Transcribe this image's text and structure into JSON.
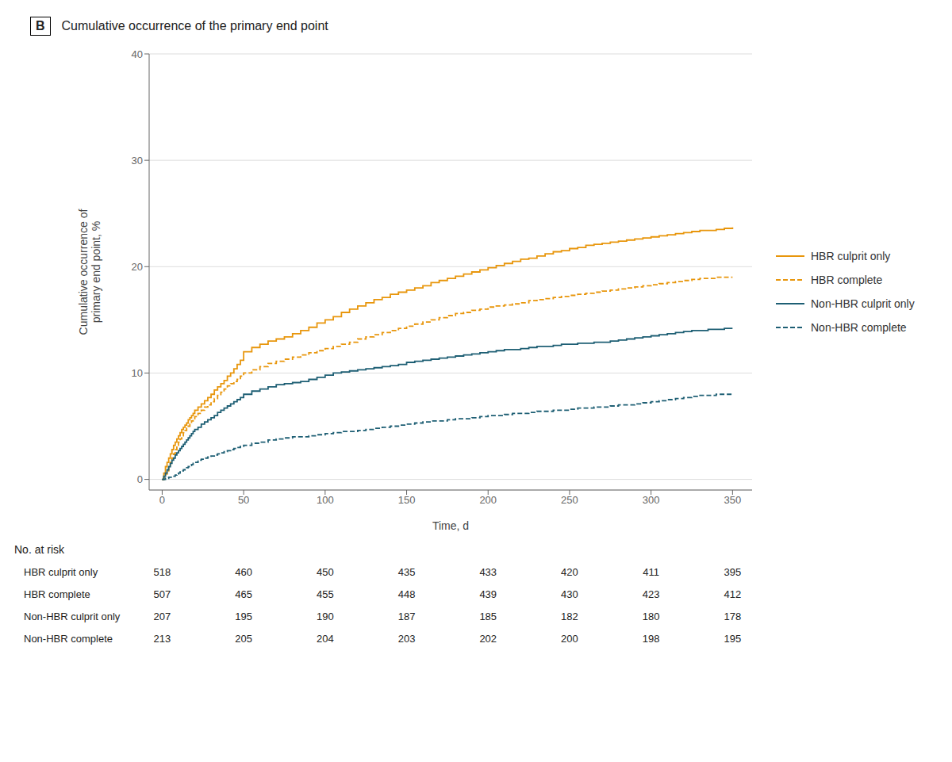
{
  "chart_data": {
    "type": "line",
    "step": true,
    "panel_label": "B",
    "title": "Cumulative occurrence of the primary end point",
    "xlabel": "Time, d",
    "ylabel": "Cumulative occurrence of\nprimary end point, %",
    "xlim": [
      -8,
      362
    ],
    "ylim": [
      -1,
      40
    ],
    "xticks": [
      0,
      50,
      100,
      150,
      200,
      250,
      300,
      350
    ],
    "yticks": [
      0,
      10,
      20,
      30,
      40
    ],
    "grid": true,
    "legend": "right",
    "x": [
      0,
      1,
      2,
      3,
      4,
      5,
      6,
      7,
      8,
      9,
      10,
      11,
      12,
      13,
      14,
      15,
      16,
      17,
      18,
      19,
      20,
      22,
      24,
      26,
      28,
      30,
      32,
      34,
      36,
      38,
      40,
      42,
      44,
      46,
      48,
      50,
      55,
      60,
      65,
      70,
      75,
      80,
      85,
      90,
      95,
      100,
      105,
      110,
      115,
      120,
      125,
      130,
      135,
      140,
      145,
      150,
      155,
      160,
      165,
      170,
      175,
      180,
      185,
      190,
      195,
      200,
      205,
      210,
      215,
      220,
      225,
      230,
      235,
      240,
      245,
      250,
      255,
      260,
      265,
      270,
      275,
      280,
      285,
      290,
      295,
      300,
      305,
      310,
      315,
      320,
      325,
      330,
      335,
      340,
      345,
      350
    ],
    "series": [
      {
        "name": "HBR culprit only",
        "color": "#E8960C",
        "line_style": "solid",
        "values": [
          0,
          0.6,
          1.2,
          1.6,
          2.0,
          2.4,
          2.8,
          3.2,
          3.5,
          3.8,
          4.1,
          4.4,
          4.7,
          4.9,
          5.1,
          5.3,
          5.6,
          5.8,
          6.0,
          6.2,
          6.5,
          6.8,
          7.1,
          7.4,
          7.7,
          8.0,
          8.4,
          8.7,
          9.0,
          9.3,
          9.7,
          10.0,
          10.4,
          10.8,
          11.2,
          12.0,
          12.4,
          12.7,
          13.0,
          13.2,
          13.4,
          13.7,
          14.0,
          14.3,
          14.7,
          15.0,
          15.3,
          15.7,
          16.0,
          16.3,
          16.6,
          16.9,
          17.1,
          17.4,
          17.6,
          17.8,
          18.0,
          18.2,
          18.5,
          18.7,
          18.9,
          19.1,
          19.3,
          19.5,
          19.7,
          19.9,
          20.1,
          20.3,
          20.5,
          20.7,
          20.8,
          21.0,
          21.2,
          21.4,
          21.5,
          21.7,
          21.8,
          22.0,
          22.1,
          22.2,
          22.3,
          22.4,
          22.5,
          22.6,
          22.7,
          22.8,
          22.9,
          23.0,
          23.1,
          23.2,
          23.3,
          23.4,
          23.4,
          23.5,
          23.6,
          23.7
        ]
      },
      {
        "name": "HBR complete",
        "color": "#E8960C",
        "line_style": "dashed",
        "values": [
          0,
          0.2,
          0.5,
          0.8,
          1.2,
          1.6,
          2.0,
          2.4,
          2.8,
          3.2,
          3.5,
          3.8,
          4.1,
          4.4,
          4.6,
          4.8,
          5.0,
          5.2,
          5.5,
          5.7,
          5.9,
          6.2,
          6.5,
          6.8,
          7.0,
          7.3,
          7.6,
          7.9,
          8.2,
          8.5,
          8.8,
          9.0,
          9.2,
          9.4,
          9.7,
          10.0,
          10.3,
          10.6,
          10.9,
          11.1,
          11.3,
          11.5,
          11.7,
          11.9,
          12.1,
          12.3,
          12.5,
          12.7,
          12.9,
          13.2,
          13.4,
          13.6,
          13.8,
          14.0,
          14.2,
          14.4,
          14.6,
          14.8,
          15.0,
          15.2,
          15.4,
          15.6,
          15.7,
          15.9,
          16.0,
          16.2,
          16.3,
          16.4,
          16.5,
          16.6,
          16.8,
          16.9,
          17.0,
          17.1,
          17.2,
          17.3,
          17.4,
          17.5,
          17.6,
          17.7,
          17.8,
          17.9,
          18.0,
          18.1,
          18.2,
          18.3,
          18.4,
          18.5,
          18.6,
          18.7,
          18.8,
          18.9,
          18.9,
          19.0,
          19.0,
          19.0
        ]
      },
      {
        "name": "Non-HBR culprit only",
        "color": "#1E5F74",
        "line_style": "solid",
        "values": [
          0,
          0.3,
          0.6,
          0.9,
          1.2,
          1.5,
          1.8,
          2.0,
          2.3,
          2.5,
          2.7,
          2.9,
          3.1,
          3.3,
          3.5,
          3.7,
          3.9,
          4.1,
          4.3,
          4.5,
          4.7,
          4.9,
          5.2,
          5.4,
          5.6,
          5.8,
          6.0,
          6.3,
          6.5,
          6.7,
          6.9,
          7.1,
          7.3,
          7.5,
          7.7,
          8.0,
          8.3,
          8.5,
          8.7,
          8.9,
          9.0,
          9.1,
          9.2,
          9.4,
          9.6,
          9.8,
          10.0,
          10.1,
          10.2,
          10.3,
          10.4,
          10.5,
          10.6,
          10.7,
          10.8,
          11.0,
          11.1,
          11.2,
          11.3,
          11.4,
          11.5,
          11.6,
          11.7,
          11.8,
          11.9,
          12.0,
          12.1,
          12.2,
          12.2,
          12.3,
          12.4,
          12.5,
          12.5,
          12.6,
          12.7,
          12.7,
          12.8,
          12.8,
          12.9,
          12.9,
          13.0,
          13.1,
          13.2,
          13.3,
          13.4,
          13.5,
          13.6,
          13.7,
          13.8,
          13.9,
          14.0,
          14.0,
          14.1,
          14.1,
          14.2,
          14.2
        ]
      },
      {
        "name": "Non-HBR complete",
        "color": "#1E5F74",
        "line_style": "dashed",
        "values": [
          0,
          0.0,
          0.1,
          0.1,
          0.2,
          0.2,
          0.3,
          0.3,
          0.4,
          0.5,
          0.6,
          0.7,
          0.8,
          0.9,
          1.0,
          1.1,
          1.2,
          1.3,
          1.4,
          1.5,
          1.6,
          1.8,
          1.9,
          2.0,
          2.1,
          2.2,
          2.3,
          2.4,
          2.5,
          2.6,
          2.7,
          2.8,
          2.9,
          3.0,
          3.1,
          3.2,
          3.4,
          3.5,
          3.7,
          3.8,
          3.9,
          4.0,
          4.0,
          4.1,
          4.2,
          4.3,
          4.4,
          4.5,
          4.5,
          4.6,
          4.7,
          4.8,
          4.9,
          5.0,
          5.1,
          5.2,
          5.3,
          5.4,
          5.5,
          5.5,
          5.6,
          5.7,
          5.7,
          5.8,
          5.9,
          6.0,
          6.0,
          6.1,
          6.2,
          6.2,
          6.3,
          6.4,
          6.4,
          6.5,
          6.5,
          6.6,
          6.7,
          6.7,
          6.8,
          6.8,
          6.9,
          7.0,
          7.0,
          7.1,
          7.2,
          7.3,
          7.4,
          7.5,
          7.6,
          7.7,
          7.8,
          7.9,
          7.9,
          8.0,
          8.0,
          8.0
        ]
      }
    ],
    "at_risk": {
      "label": "No. at risk",
      "x": [
        0,
        50,
        100,
        150,
        200,
        250,
        300,
        350
      ],
      "rows": [
        {
          "name": "HBR culprit only",
          "values": [
            518,
            460,
            450,
            435,
            433,
            420,
            411,
            395
          ]
        },
        {
          "name": "HBR complete",
          "values": [
            507,
            465,
            455,
            448,
            439,
            430,
            423,
            412
          ]
        },
        {
          "name": "Non-HBR culprit only",
          "values": [
            207,
            195,
            190,
            187,
            185,
            182,
            180,
            178
          ]
        },
        {
          "name": "Non-HBR complete",
          "values": [
            213,
            205,
            204,
            203,
            202,
            200,
            198,
            195
          ]
        }
      ]
    }
  }
}
